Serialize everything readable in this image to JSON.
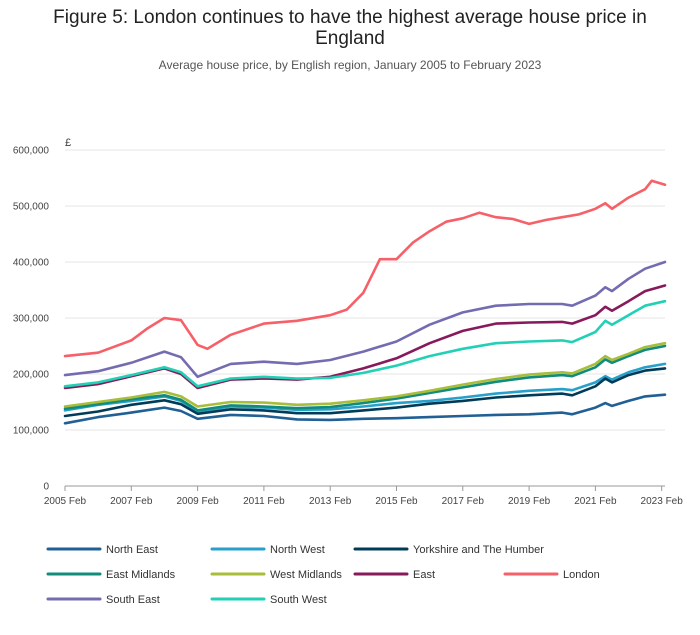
{
  "chart_data": {
    "type": "line",
    "title": "Figure 5: London continues to have the highest average house price in England",
    "subtitle": "Average house price, by English region, January 2005 to February 2023",
    "y_unit": "£",
    "ylim": [
      0,
      600000
    ],
    "y_ticks": [
      0,
      100000,
      200000,
      300000,
      400000,
      500000,
      600000
    ],
    "y_tick_labels": [
      "0",
      "100,000",
      "200,000",
      "300,000",
      "400,000",
      "500,000",
      "600,000"
    ],
    "x_ticks": [
      "2005 Feb",
      "2007 Feb",
      "2009 Feb",
      "2011 Feb",
      "2013 Feb",
      "2015 Feb",
      "2017 Feb",
      "2019 Feb",
      "2021 Feb",
      "2023 Feb"
    ],
    "xlim": [
      2005.0,
      2023.1
    ],
    "grid": "horizontal",
    "legend_position": "bottom",
    "series": [
      {
        "name": "North East",
        "color": "#206095",
        "points": [
          [
            2005.0,
            112000
          ],
          [
            2006.0,
            123000
          ],
          [
            2007.0,
            131000
          ],
          [
            2008.0,
            140000
          ],
          [
            2008.5,
            134000
          ],
          [
            2009.0,
            120000
          ],
          [
            2010.0,
            127000
          ],
          [
            2011.0,
            125000
          ],
          [
            2012.0,
            119000
          ],
          [
            2013.0,
            118000
          ],
          [
            2014.0,
            120000
          ],
          [
            2015.0,
            121000
          ],
          [
            2016.0,
            123000
          ],
          [
            2017.0,
            125000
          ],
          [
            2018.0,
            127000
          ],
          [
            2019.0,
            128000
          ],
          [
            2020.0,
            131000
          ],
          [
            2020.3,
            128000
          ],
          [
            2021.0,
            140000
          ],
          [
            2021.3,
            148000
          ],
          [
            2021.5,
            143000
          ],
          [
            2022.0,
            152000
          ],
          [
            2022.5,
            160000
          ],
          [
            2023.1,
            163000
          ]
        ]
      },
      {
        "name": "North West",
        "color": "#27a0cc",
        "points": [
          [
            2005.0,
            135000
          ],
          [
            2006.0,
            145000
          ],
          [
            2007.0,
            152000
          ],
          [
            2008.0,
            160000
          ],
          [
            2008.5,
            152000
          ],
          [
            2009.0,
            133000
          ],
          [
            2010.0,
            142000
          ],
          [
            2011.0,
            140000
          ],
          [
            2012.0,
            136000
          ],
          [
            2013.0,
            137000
          ],
          [
            2014.0,
            142000
          ],
          [
            2015.0,
            148000
          ],
          [
            2016.0,
            152000
          ],
          [
            2017.0,
            158000
          ],
          [
            2018.0,
            165000
          ],
          [
            2019.0,
            170000
          ],
          [
            2020.0,
            173000
          ],
          [
            2020.3,
            171000
          ],
          [
            2021.0,
            185000
          ],
          [
            2021.3,
            196000
          ],
          [
            2021.5,
            190000
          ],
          [
            2022.0,
            203000
          ],
          [
            2022.5,
            212000
          ],
          [
            2023.1,
            218000
          ]
        ]
      },
      {
        "name": "Yorkshire and The Humber",
        "color": "#003c57",
        "points": [
          [
            2005.0,
            125000
          ],
          [
            2006.0,
            133000
          ],
          [
            2007.0,
            145000
          ],
          [
            2008.0,
            153000
          ],
          [
            2008.5,
            146000
          ],
          [
            2009.0,
            129000
          ],
          [
            2010.0,
            137000
          ],
          [
            2011.0,
            135000
          ],
          [
            2012.0,
            130000
          ],
          [
            2013.0,
            130000
          ],
          [
            2014.0,
            135000
          ],
          [
            2015.0,
            140000
          ],
          [
            2016.0,
            147000
          ],
          [
            2017.0,
            152000
          ],
          [
            2018.0,
            158000
          ],
          [
            2019.0,
            162000
          ],
          [
            2020.0,
            165000
          ],
          [
            2020.3,
            162000
          ],
          [
            2021.0,
            178000
          ],
          [
            2021.3,
            192000
          ],
          [
            2021.5,
            185000
          ],
          [
            2022.0,
            198000
          ],
          [
            2022.5,
            206000
          ],
          [
            2023.1,
            210000
          ]
        ]
      },
      {
        "name": "East Midlands",
        "color": "#118c7b",
        "points": [
          [
            2005.0,
            138000
          ],
          [
            2006.0,
            146000
          ],
          [
            2007.0,
            155000
          ],
          [
            2008.0,
            162000
          ],
          [
            2008.5,
            154000
          ],
          [
            2009.0,
            135000
          ],
          [
            2010.0,
            144000
          ],
          [
            2011.0,
            142000
          ],
          [
            2012.0,
            139000
          ],
          [
            2013.0,
            141000
          ],
          [
            2014.0,
            148000
          ],
          [
            2015.0,
            156000
          ],
          [
            2016.0,
            166000
          ],
          [
            2017.0,
            176000
          ],
          [
            2018.0,
            186000
          ],
          [
            2019.0,
            194000
          ],
          [
            2020.0,
            198000
          ],
          [
            2020.3,
            196000
          ],
          [
            2021.0,
            212000
          ],
          [
            2021.3,
            226000
          ],
          [
            2021.5,
            220000
          ],
          [
            2022.0,
            232000
          ],
          [
            2022.5,
            243000
          ],
          [
            2023.1,
            250000
          ]
        ]
      },
      {
        "name": "West Midlands",
        "color": "#a8bd3a",
        "points": [
          [
            2005.0,
            142000
          ],
          [
            2006.0,
            150000
          ],
          [
            2007.0,
            158000
          ],
          [
            2008.0,
            168000
          ],
          [
            2008.5,
            160000
          ],
          [
            2009.0,
            142000
          ],
          [
            2010.0,
            150000
          ],
          [
            2011.0,
            149000
          ],
          [
            2012.0,
            145000
          ],
          [
            2013.0,
            147000
          ],
          [
            2014.0,
            153000
          ],
          [
            2015.0,
            160000
          ],
          [
            2016.0,
            170000
          ],
          [
            2017.0,
            181000
          ],
          [
            2018.0,
            191000
          ],
          [
            2019.0,
            199000
          ],
          [
            2020.0,
            203000
          ],
          [
            2020.3,
            201000
          ],
          [
            2021.0,
            218000
          ],
          [
            2021.3,
            232000
          ],
          [
            2021.5,
            225000
          ],
          [
            2022.0,
            236000
          ],
          [
            2022.5,
            248000
          ],
          [
            2023.1,
            255000
          ]
        ]
      },
      {
        "name": "East",
        "color": "#871a5b",
        "points": [
          [
            2005.0,
            175000
          ],
          [
            2006.0,
            182000
          ],
          [
            2007.0,
            196000
          ],
          [
            2008.0,
            210000
          ],
          [
            2008.5,
            200000
          ],
          [
            2009.0,
            175000
          ],
          [
            2010.0,
            190000
          ],
          [
            2011.0,
            192000
          ],
          [
            2012.0,
            190000
          ],
          [
            2013.0,
            195000
          ],
          [
            2014.0,
            210000
          ],
          [
            2015.0,
            228000
          ],
          [
            2016.0,
            255000
          ],
          [
            2017.0,
            277000
          ],
          [
            2018.0,
            290000
          ],
          [
            2019.0,
            292000
          ],
          [
            2020.0,
            293000
          ],
          [
            2020.3,
            290000
          ],
          [
            2021.0,
            305000
          ],
          [
            2021.3,
            320000
          ],
          [
            2021.5,
            313000
          ],
          [
            2022.0,
            330000
          ],
          [
            2022.5,
            348000
          ],
          [
            2023.1,
            358000
          ]
        ]
      },
      {
        "name": "London",
        "color": "#f66068",
        "points": [
          [
            2005.0,
            232000
          ],
          [
            2006.0,
            238000
          ],
          [
            2007.0,
            260000
          ],
          [
            2007.5,
            282000
          ],
          [
            2008.0,
            300000
          ],
          [
            2008.5,
            296000
          ],
          [
            2009.0,
            252000
          ],
          [
            2009.3,
            245000
          ],
          [
            2010.0,
            270000
          ],
          [
            2011.0,
            290000
          ],
          [
            2012.0,
            295000
          ],
          [
            2013.0,
            305000
          ],
          [
            2013.5,
            315000
          ],
          [
            2014.0,
            345000
          ],
          [
            2014.5,
            405000
          ],
          [
            2015.0,
            405000
          ],
          [
            2015.5,
            435000
          ],
          [
            2016.0,
            455000
          ],
          [
            2016.5,
            472000
          ],
          [
            2017.0,
            478000
          ],
          [
            2017.5,
            488000
          ],
          [
            2018.0,
            480000
          ],
          [
            2018.5,
            477000
          ],
          [
            2019.0,
            468000
          ],
          [
            2019.5,
            475000
          ],
          [
            2020.0,
            480000
          ],
          [
            2020.5,
            485000
          ],
          [
            2021.0,
            495000
          ],
          [
            2021.3,
            505000
          ],
          [
            2021.5,
            495000
          ],
          [
            2022.0,
            515000
          ],
          [
            2022.5,
            530000
          ],
          [
            2022.7,
            545000
          ],
          [
            2023.1,
            538000
          ]
        ]
      },
      {
        "name": "South East",
        "color": "#746cb1",
        "points": [
          [
            2005.0,
            198000
          ],
          [
            2006.0,
            205000
          ],
          [
            2007.0,
            220000
          ],
          [
            2008.0,
            240000
          ],
          [
            2008.5,
            230000
          ],
          [
            2009.0,
            195000
          ],
          [
            2010.0,
            218000
          ],
          [
            2011.0,
            222000
          ],
          [
            2012.0,
            218000
          ],
          [
            2013.0,
            225000
          ],
          [
            2014.0,
            240000
          ],
          [
            2015.0,
            258000
          ],
          [
            2016.0,
            288000
          ],
          [
            2017.0,
            310000
          ],
          [
            2018.0,
            322000
          ],
          [
            2019.0,
            325000
          ],
          [
            2020.0,
            325000
          ],
          [
            2020.3,
            322000
          ],
          [
            2021.0,
            340000
          ],
          [
            2021.3,
            355000
          ],
          [
            2021.5,
            348000
          ],
          [
            2022.0,
            370000
          ],
          [
            2022.5,
            388000
          ],
          [
            2023.1,
            400000
          ]
        ]
      },
      {
        "name": "South West",
        "color": "#22d0b6",
        "points": [
          [
            2005.0,
            178000
          ],
          [
            2006.0,
            185000
          ],
          [
            2007.0,
            198000
          ],
          [
            2008.0,
            212000
          ],
          [
            2008.5,
            203000
          ],
          [
            2009.0,
            178000
          ],
          [
            2010.0,
            192000
          ],
          [
            2011.0,
            195000
          ],
          [
            2012.0,
            192000
          ],
          [
            2013.0,
            193000
          ],
          [
            2014.0,
            202000
          ],
          [
            2015.0,
            215000
          ],
          [
            2016.0,
            232000
          ],
          [
            2017.0,
            245000
          ],
          [
            2018.0,
            255000
          ],
          [
            2019.0,
            258000
          ],
          [
            2020.0,
            260000
          ],
          [
            2020.3,
            257000
          ],
          [
            2021.0,
            275000
          ],
          [
            2021.3,
            295000
          ],
          [
            2021.5,
            288000
          ],
          [
            2022.0,
            305000
          ],
          [
            2022.5,
            322000
          ],
          [
            2023.1,
            330000
          ]
        ]
      }
    ]
  }
}
